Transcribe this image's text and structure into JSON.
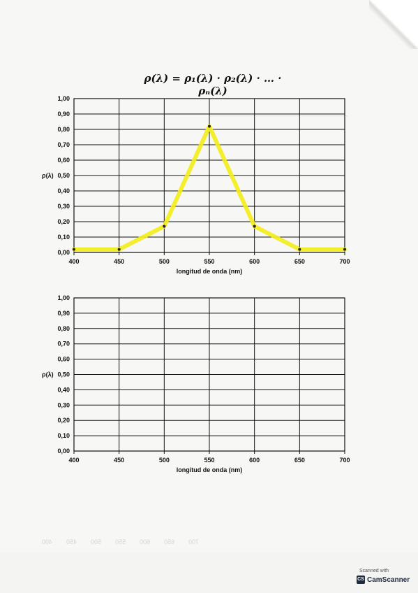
{
  "formula": "ρ(λ) = ρ₁(λ) · ρ₂(λ) · … · ρₙ(λ)",
  "colors": {
    "curve": "#f2ee1c",
    "grid": "#111111",
    "marker": "#222222"
  },
  "chart_data": [
    {
      "type": "line",
      "xlabel": "longitud de onda (nm)",
      "ylabel": "ρ(λ)",
      "x_ticks": [
        "400",
        "450",
        "500",
        "550",
        "600",
        "650",
        "700"
      ],
      "y_ticks": [
        "0,00",
        "0,10",
        "0,20",
        "0,30",
        "0,40",
        "0,50",
        "0,60",
        "0,70",
        "0,80",
        "0,90",
        "1,00"
      ],
      "xlim": [
        400,
        700
      ],
      "ylim": [
        0,
        1
      ],
      "grid": true,
      "series": [
        {
          "x": [
            400,
            450,
            500,
            550,
            600,
            650,
            700
          ],
          "y": [
            0.02,
            0.02,
            0.17,
            0.82,
            0.17,
            0.02,
            0.02
          ]
        }
      ]
    },
    {
      "type": "line",
      "xlabel": "longitud de onda (nm)",
      "ylabel": "ρ(λ)",
      "x_ticks": [
        "400",
        "450",
        "500",
        "550",
        "600",
        "650",
        "700"
      ],
      "y_ticks": [
        "0,00",
        "0,10",
        "0,20",
        "0,30",
        "0,40",
        "0,50",
        "0,60",
        "0,70",
        "0,80",
        "0,90",
        "1,00"
      ],
      "xlim": [
        400,
        700
      ],
      "ylim": [
        0,
        1
      ],
      "grid": true,
      "series": []
    }
  ],
  "scanner": {
    "scanned_with": "Scanned with",
    "name": "CamScanner",
    "icon": "CS"
  }
}
